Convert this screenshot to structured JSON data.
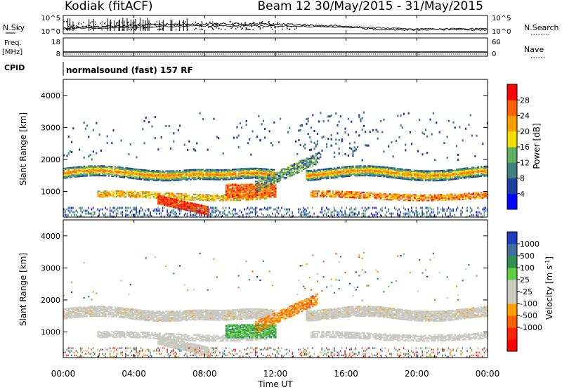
{
  "header": {
    "station": "Kodiak (fitACF)",
    "beam_range": "Beam 12 30/May/2015 - 31/May/2015"
  },
  "top_panels": {
    "nsky": {
      "label": "N.Sky",
      "left_ticks": [
        "10^5",
        "10^0"
      ],
      "right_ticks": [
        "10^5",
        "10^0"
      ],
      "right_label": "N.Search"
    },
    "freq": {
      "label_lines": [
        "Freq.",
        "[MHz]"
      ],
      "left_ticks": [
        "18",
        "8"
      ],
      "right_ticks": [
        "60",
        "0"
      ],
      "right_label": "Nave"
    },
    "cpid": {
      "label": "CPID",
      "text": "normalsound (fast) 157 RF"
    }
  },
  "colors": {
    "power_scale": [
      "#0000ff",
      "#1f3f9f",
      "#3f7f7f",
      "#5faf5f",
      "#f2e000",
      "#f7a000",
      "#ff6000",
      "#ff0000"
    ],
    "velocity_scale": [
      "#1f3fbf",
      "#3f6f9f",
      "#2f8f4f",
      "#5fcf3f",
      "#c8c8c0",
      "#c8c8c0",
      "#ffa000",
      "#ff6000",
      "#ff2000",
      "#ff0000"
    ],
    "ground": "#c8c8c0"
  },
  "chart_data": [
    {
      "type": "heatmap",
      "name": "power",
      "x_range": [
        "00:00",
        "00:00"
      ],
      "xlabel": "Time UT",
      "ylabel": "Slant Range [km]",
      "yticks": [
        "1000",
        "2000",
        "3000",
        "4000"
      ],
      "ylim": [
        200,
        4500
      ],
      "colorbar_label": "Power [dB]",
      "colorbar_ticks": [
        "4",
        "8",
        "12",
        "16",
        "20",
        "24",
        "28"
      ],
      "colorbar_range": [
        0,
        32
      ]
    },
    {
      "type": "heatmap",
      "name": "velocity",
      "x_range": [
        "00:00",
        "00:00"
      ],
      "xlabel": "Time UT",
      "ylabel": "Slant Range [km]",
      "yticks": [
        "1000",
        "2000",
        "3000",
        "4000"
      ],
      "ylim": [
        200,
        4500
      ],
      "colorbar_label": "Velocity [m s^-1]",
      "colorbar_ticks": [
        "1000",
        "500",
        "100",
        "25",
        "-25",
        "-100",
        "-500",
        "-1000"
      ]
    },
    {
      "type": "line",
      "name": "time-axis",
      "xticks": [
        "00:00",
        "04:00",
        "08:00",
        "12:00",
        "16:00",
        "20:00",
        "00:00"
      ],
      "xlabel": "Time UT"
    }
  ]
}
